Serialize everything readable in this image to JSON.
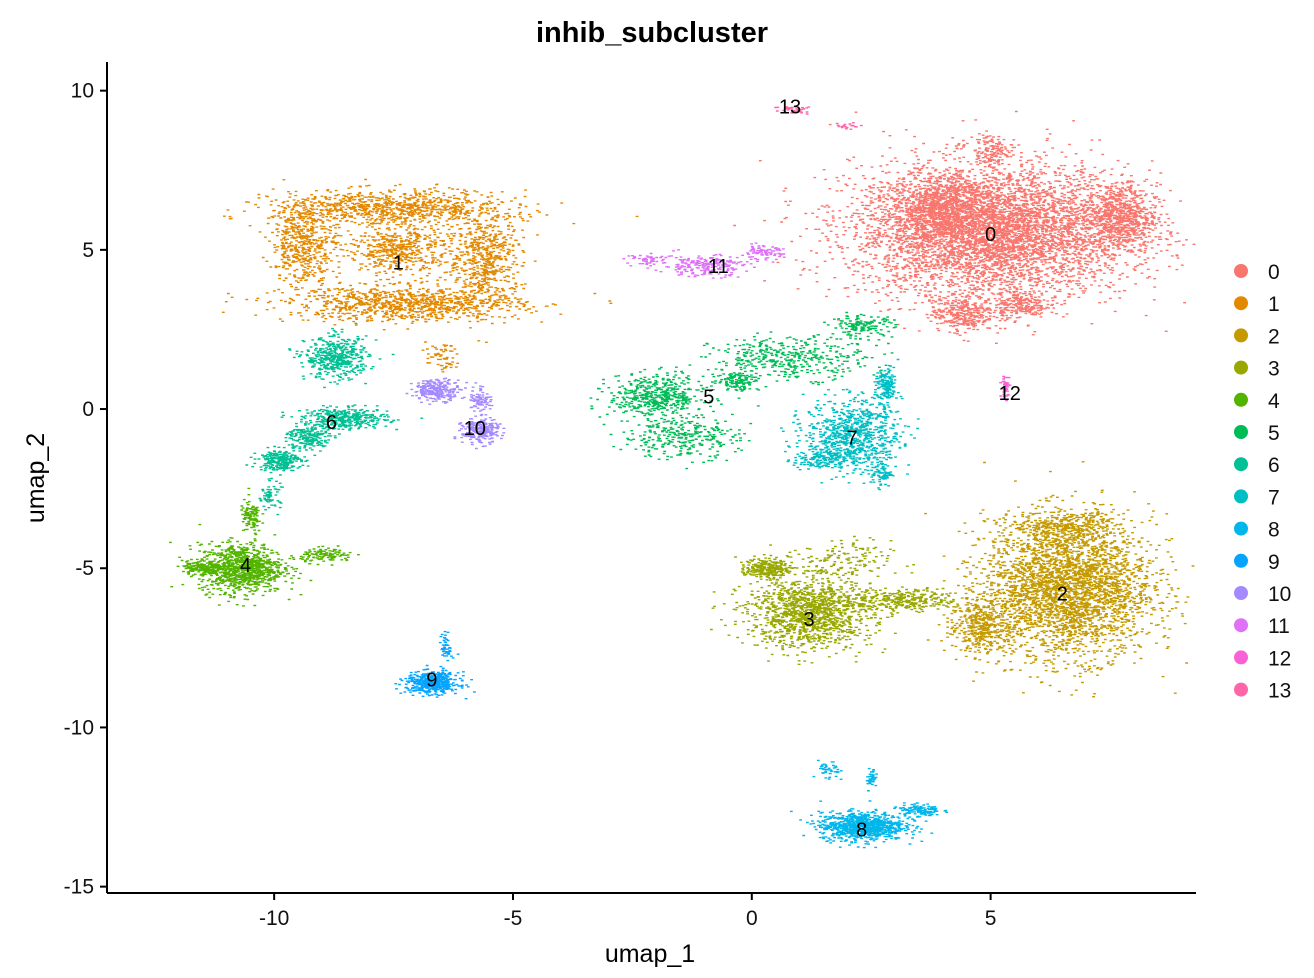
{
  "chart_data": {
    "type": "scatter",
    "title": "inhib_subcluster",
    "xlabel": "umap_1",
    "ylabel": "umap_2",
    "xlim": [
      -13.5,
      9.3
    ],
    "ylim": [
      -15.2,
      10.9
    ],
    "xticks": [
      -10,
      -5,
      0,
      5
    ],
    "yticks": [
      10,
      5,
      0,
      -5,
      -10,
      -15
    ],
    "xtick_labels": [
      "-10",
      "-5",
      "0",
      "5"
    ],
    "ytick_labels": [
      "10",
      "5",
      "0",
      "-5",
      "-10",
      "-15"
    ],
    "grid": false,
    "legend_position": "right",
    "series": [
      {
        "name": "0",
        "color": "#F8766D",
        "label_pos": [
          5.0,
          5.5
        ],
        "blobs": [
          [
            5.0,
            5.6,
            2.6,
            1.9,
            5200
          ],
          [
            3.9,
            6.3,
            0.9,
            0.9,
            700
          ],
          [
            7.7,
            6.0,
            0.7,
            1.0,
            700
          ],
          [
            5.0,
            8.1,
            0.3,
            0.5,
            120
          ],
          [
            4.4,
            3.0,
            0.6,
            0.5,
            300
          ],
          [
            5.6,
            3.3,
            0.5,
            0.4,
            200
          ]
        ]
      },
      {
        "name": "1",
        "color": "#E38900",
        "label_pos": [
          -7.4,
          4.6
        ],
        "blobs": [
          [
            -7.6,
            6.3,
            2.2,
            0.5,
            900
          ],
          [
            -9.4,
            5.2,
            0.6,
            1.2,
            500
          ],
          [
            -5.6,
            4.7,
            0.7,
            1.4,
            600
          ],
          [
            -7.3,
            3.3,
            2.2,
            0.5,
            900
          ],
          [
            -7.4,
            5.0,
            1.0,
            0.7,
            500
          ],
          [
            -6.5,
            1.6,
            0.3,
            0.4,
            60
          ]
        ]
      },
      {
        "name": "2",
        "color": "#C49A00",
        "label_pos": [
          6.5,
          -5.8
        ],
        "blobs": [
          [
            6.6,
            -5.6,
            1.6,
            2.0,
            3200
          ],
          [
            4.8,
            -6.8,
            0.6,
            0.8,
            400
          ],
          [
            6.5,
            -3.7,
            1.0,
            0.4,
            300
          ]
        ]
      },
      {
        "name": "3",
        "color": "#99A800",
        "label_pos": [
          1.2,
          -6.6
        ],
        "blobs": [
          [
            1.2,
            -6.4,
            1.2,
            1.0,
            1300
          ],
          [
            0.3,
            -5.0,
            0.4,
            0.3,
            250
          ],
          [
            3.2,
            -6.0,
            1.0,
            0.3,
            300
          ],
          [
            1.8,
            -4.8,
            1.0,
            0.6,
            150
          ]
        ]
      },
      {
        "name": "4",
        "color": "#53B400",
        "label_pos": [
          -10.6,
          -4.9
        ],
        "blobs": [
          [
            -10.7,
            -5.0,
            0.8,
            0.7,
            1000
          ],
          [
            -11.5,
            -5.0,
            0.4,
            0.2,
            150
          ],
          [
            -8.9,
            -4.6,
            0.5,
            0.2,
            120
          ],
          [
            -10.5,
            -3.4,
            0.2,
            0.5,
            100
          ]
        ]
      },
      {
        "name": "5",
        "color": "#00BC56",
        "label_pos": [
          -0.9,
          0.4
        ],
        "blobs": [
          [
            -2.0,
            0.4,
            0.9,
            0.6,
            500
          ],
          [
            0.8,
            1.6,
            1.5,
            0.6,
            400
          ],
          [
            -1.5,
            -0.9,
            1.1,
            0.6,
            300
          ],
          [
            2.3,
            2.6,
            0.6,
            0.3,
            150
          ],
          [
            -0.3,
            0.9,
            0.4,
            0.3,
            120
          ]
        ]
      },
      {
        "name": "6",
        "color": "#00C094",
        "label_pos": [
          -8.8,
          -0.4
        ],
        "blobs": [
          [
            -8.7,
            1.6,
            0.6,
            0.6,
            450
          ],
          [
            -8.5,
            -0.3,
            0.8,
            0.3,
            350
          ],
          [
            -9.9,
            -1.6,
            0.4,
            0.3,
            250
          ],
          [
            -9.3,
            -0.9,
            0.4,
            0.4,
            200
          ],
          [
            -10.1,
            -2.7,
            0.2,
            0.4,
            60
          ]
        ]
      },
      {
        "name": "7",
        "color": "#00BFC4",
        "label_pos": [
          2.1,
          -0.9
        ],
        "blobs": [
          [
            2.1,
            -0.8,
            0.9,
            1.0,
            800
          ],
          [
            2.8,
            0.7,
            0.2,
            0.5,
            150
          ],
          [
            1.4,
            -1.6,
            0.5,
            0.3,
            150
          ],
          [
            2.7,
            -2.0,
            0.2,
            0.4,
            80
          ]
        ]
      },
      {
        "name": "8",
        "color": "#00B6EB",
        "label_pos": [
          2.3,
          -13.2
        ],
        "blobs": [
          [
            2.3,
            -13.1,
            0.8,
            0.4,
            900
          ],
          [
            3.5,
            -12.6,
            0.4,
            0.2,
            120
          ],
          [
            1.6,
            -11.4,
            0.2,
            0.3,
            40
          ],
          [
            2.5,
            -11.6,
            0.1,
            0.3,
            40
          ]
        ]
      },
      {
        "name": "9",
        "color": "#06A4FF",
        "label_pos": [
          -6.7,
          -8.5
        ],
        "blobs": [
          [
            -6.7,
            -8.6,
            0.5,
            0.3,
            500
          ],
          [
            -6.4,
            -7.5,
            0.1,
            0.4,
            50
          ]
        ]
      },
      {
        "name": "10",
        "color": "#A58AFF",
        "label_pos": [
          -5.8,
          -0.6
        ],
        "blobs": [
          [
            -5.7,
            -0.7,
            0.35,
            0.35,
            250
          ],
          [
            -6.6,
            0.6,
            0.45,
            0.3,
            250
          ],
          [
            -5.7,
            0.3,
            0.2,
            0.4,
            80
          ]
        ]
      },
      {
        "name": "11",
        "color": "#DF70F8",
        "label_pos": [
          -0.7,
          4.5
        ],
        "blobs": [
          [
            -1.0,
            4.5,
            0.8,
            0.3,
            220
          ],
          [
            0.2,
            4.9,
            0.4,
            0.2,
            80
          ],
          [
            -2.1,
            4.7,
            0.5,
            0.15,
            50
          ]
        ]
      },
      {
        "name": "12",
        "color": "#FB61D7",
        "label_pos": [
          5.4,
          0.5
        ],
        "blobs": [
          [
            5.3,
            0.7,
            0.08,
            0.3,
            45
          ]
        ]
      },
      {
        "name": "13",
        "color": "#FF66A8",
        "label_pos": [
          0.8,
          9.5
        ],
        "blobs": [
          [
            0.9,
            9.4,
            0.4,
            0.15,
            40
          ],
          [
            2.0,
            8.9,
            0.3,
            0.1,
            20
          ]
        ]
      }
    ]
  }
}
